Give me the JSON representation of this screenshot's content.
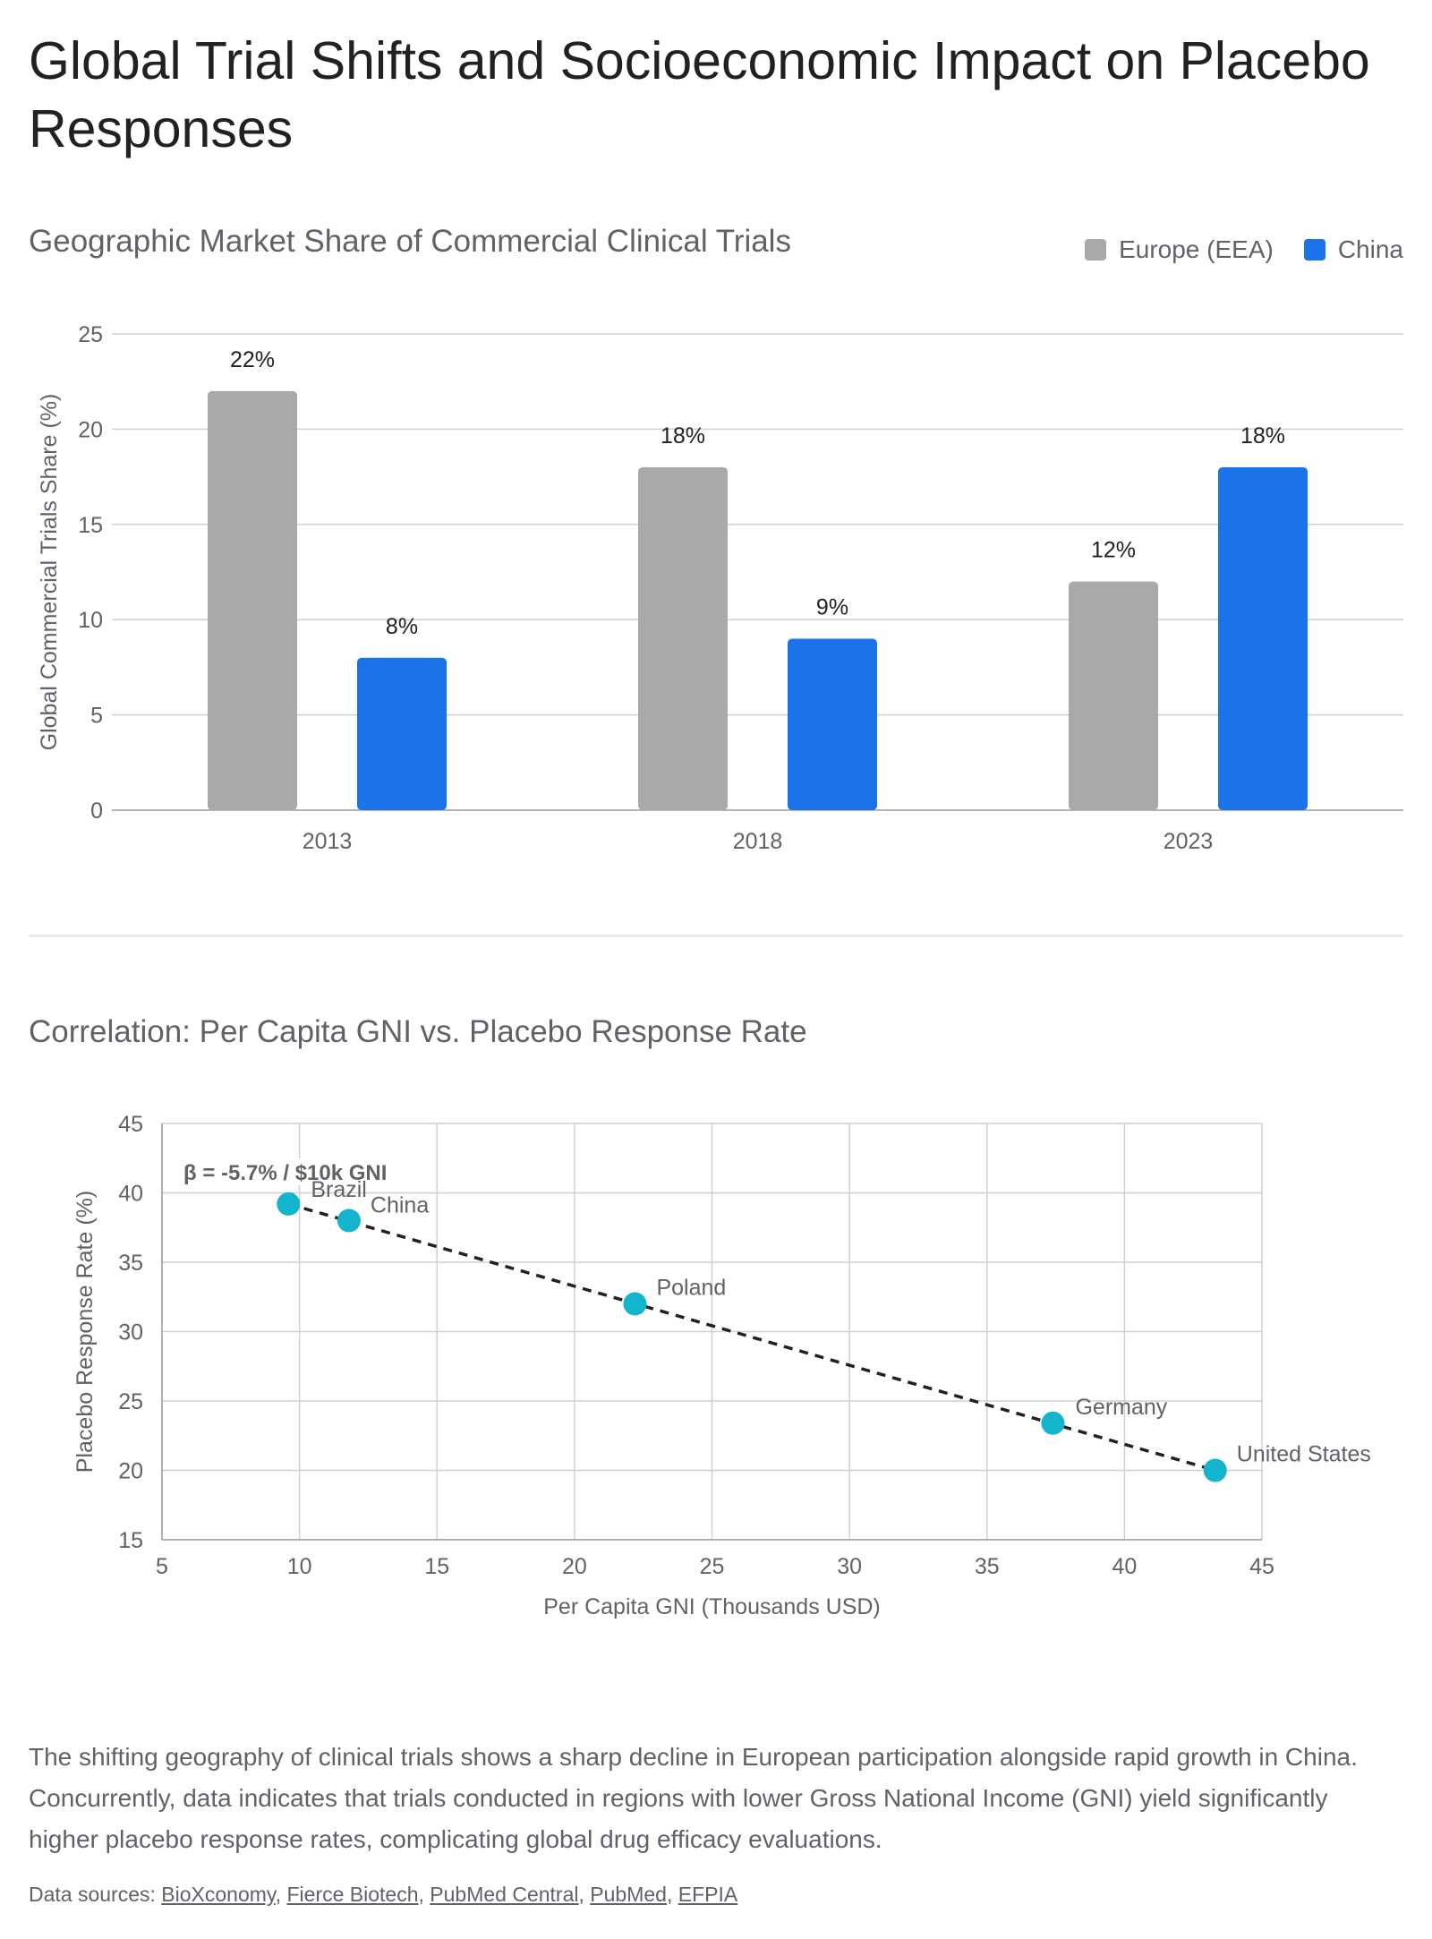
{
  "title": "Global Trial Shifts and Socioeconomic Impact on Placebo Responses",
  "description": "The shifting geography of clinical trials shows a sharp decline in European participation alongside rapid growth in China. Concurrently, data indicates that trials conducted in regions with lower Gross National Income (GNI) yield significantly higher placebo response rates, complicating global drug efficacy evaluations.",
  "sources": {
    "label": "Data sources:",
    "links": [
      "BioXconomy",
      "Fierce Biotech",
      "PubMed Central",
      "PubMed",
      "EFPIA"
    ]
  },
  "colors": {
    "europe": "#a9a9a9",
    "china": "#1a73e8",
    "scatter_point": "#12b5cb",
    "gridline": "#d0d0d0",
    "text_muted": "#5f6368"
  },
  "chart_data": [
    {
      "type": "bar",
      "title": "Geographic Market Share of Commercial Clinical Trials",
      "ylabel": "Global Commercial Trials Share (%)",
      "xlabel": "",
      "categories": [
        "2013",
        "2018",
        "2023"
      ],
      "series": [
        {
          "name": "Europe (EEA)",
          "values": [
            22,
            18,
            12
          ],
          "labels": [
            "22%",
            "18%",
            "12%"
          ]
        },
        {
          "name": "China",
          "values": [
            8,
            9,
            18
          ],
          "labels": [
            "8%",
            "9%",
            "18%"
          ]
        }
      ],
      "ylim": [
        0,
        25
      ],
      "yticks": [
        "0",
        "5",
        "10",
        "15",
        "20",
        "25"
      ],
      "grid": true,
      "legend": "top-right"
    },
    {
      "type": "scatter",
      "title": "Correlation: Per Capita GNI vs. Placebo Response Rate",
      "xlabel": "Per Capita GNI (Thousands USD)",
      "ylabel": "Placebo Response Rate (%)",
      "points": [
        {
          "label": "Brazil",
          "x": 9.6,
          "y": 39.2
        },
        {
          "label": "China",
          "x": 11.8,
          "y": 38
        },
        {
          "label": "Poland",
          "x": 22.2,
          "y": 32
        },
        {
          "label": "Germany",
          "x": 37.4,
          "y": 23.4
        },
        {
          "label": "United States",
          "x": 43.3,
          "y": 20
        }
      ],
      "trendline": {
        "style": "dashed",
        "from": [
          9.6,
          39.2
        ],
        "to": [
          43.3,
          20
        ]
      },
      "annotation": "β = -5.7% / $10k GNI",
      "xlim": [
        5,
        45
      ],
      "ylim": [
        15,
        45
      ],
      "xticks": [
        "5",
        "10",
        "15",
        "20",
        "25",
        "30",
        "35",
        "40",
        "45"
      ],
      "yticks": [
        "15",
        "20",
        "25",
        "30",
        "35",
        "40",
        "45"
      ],
      "grid": true
    }
  ]
}
